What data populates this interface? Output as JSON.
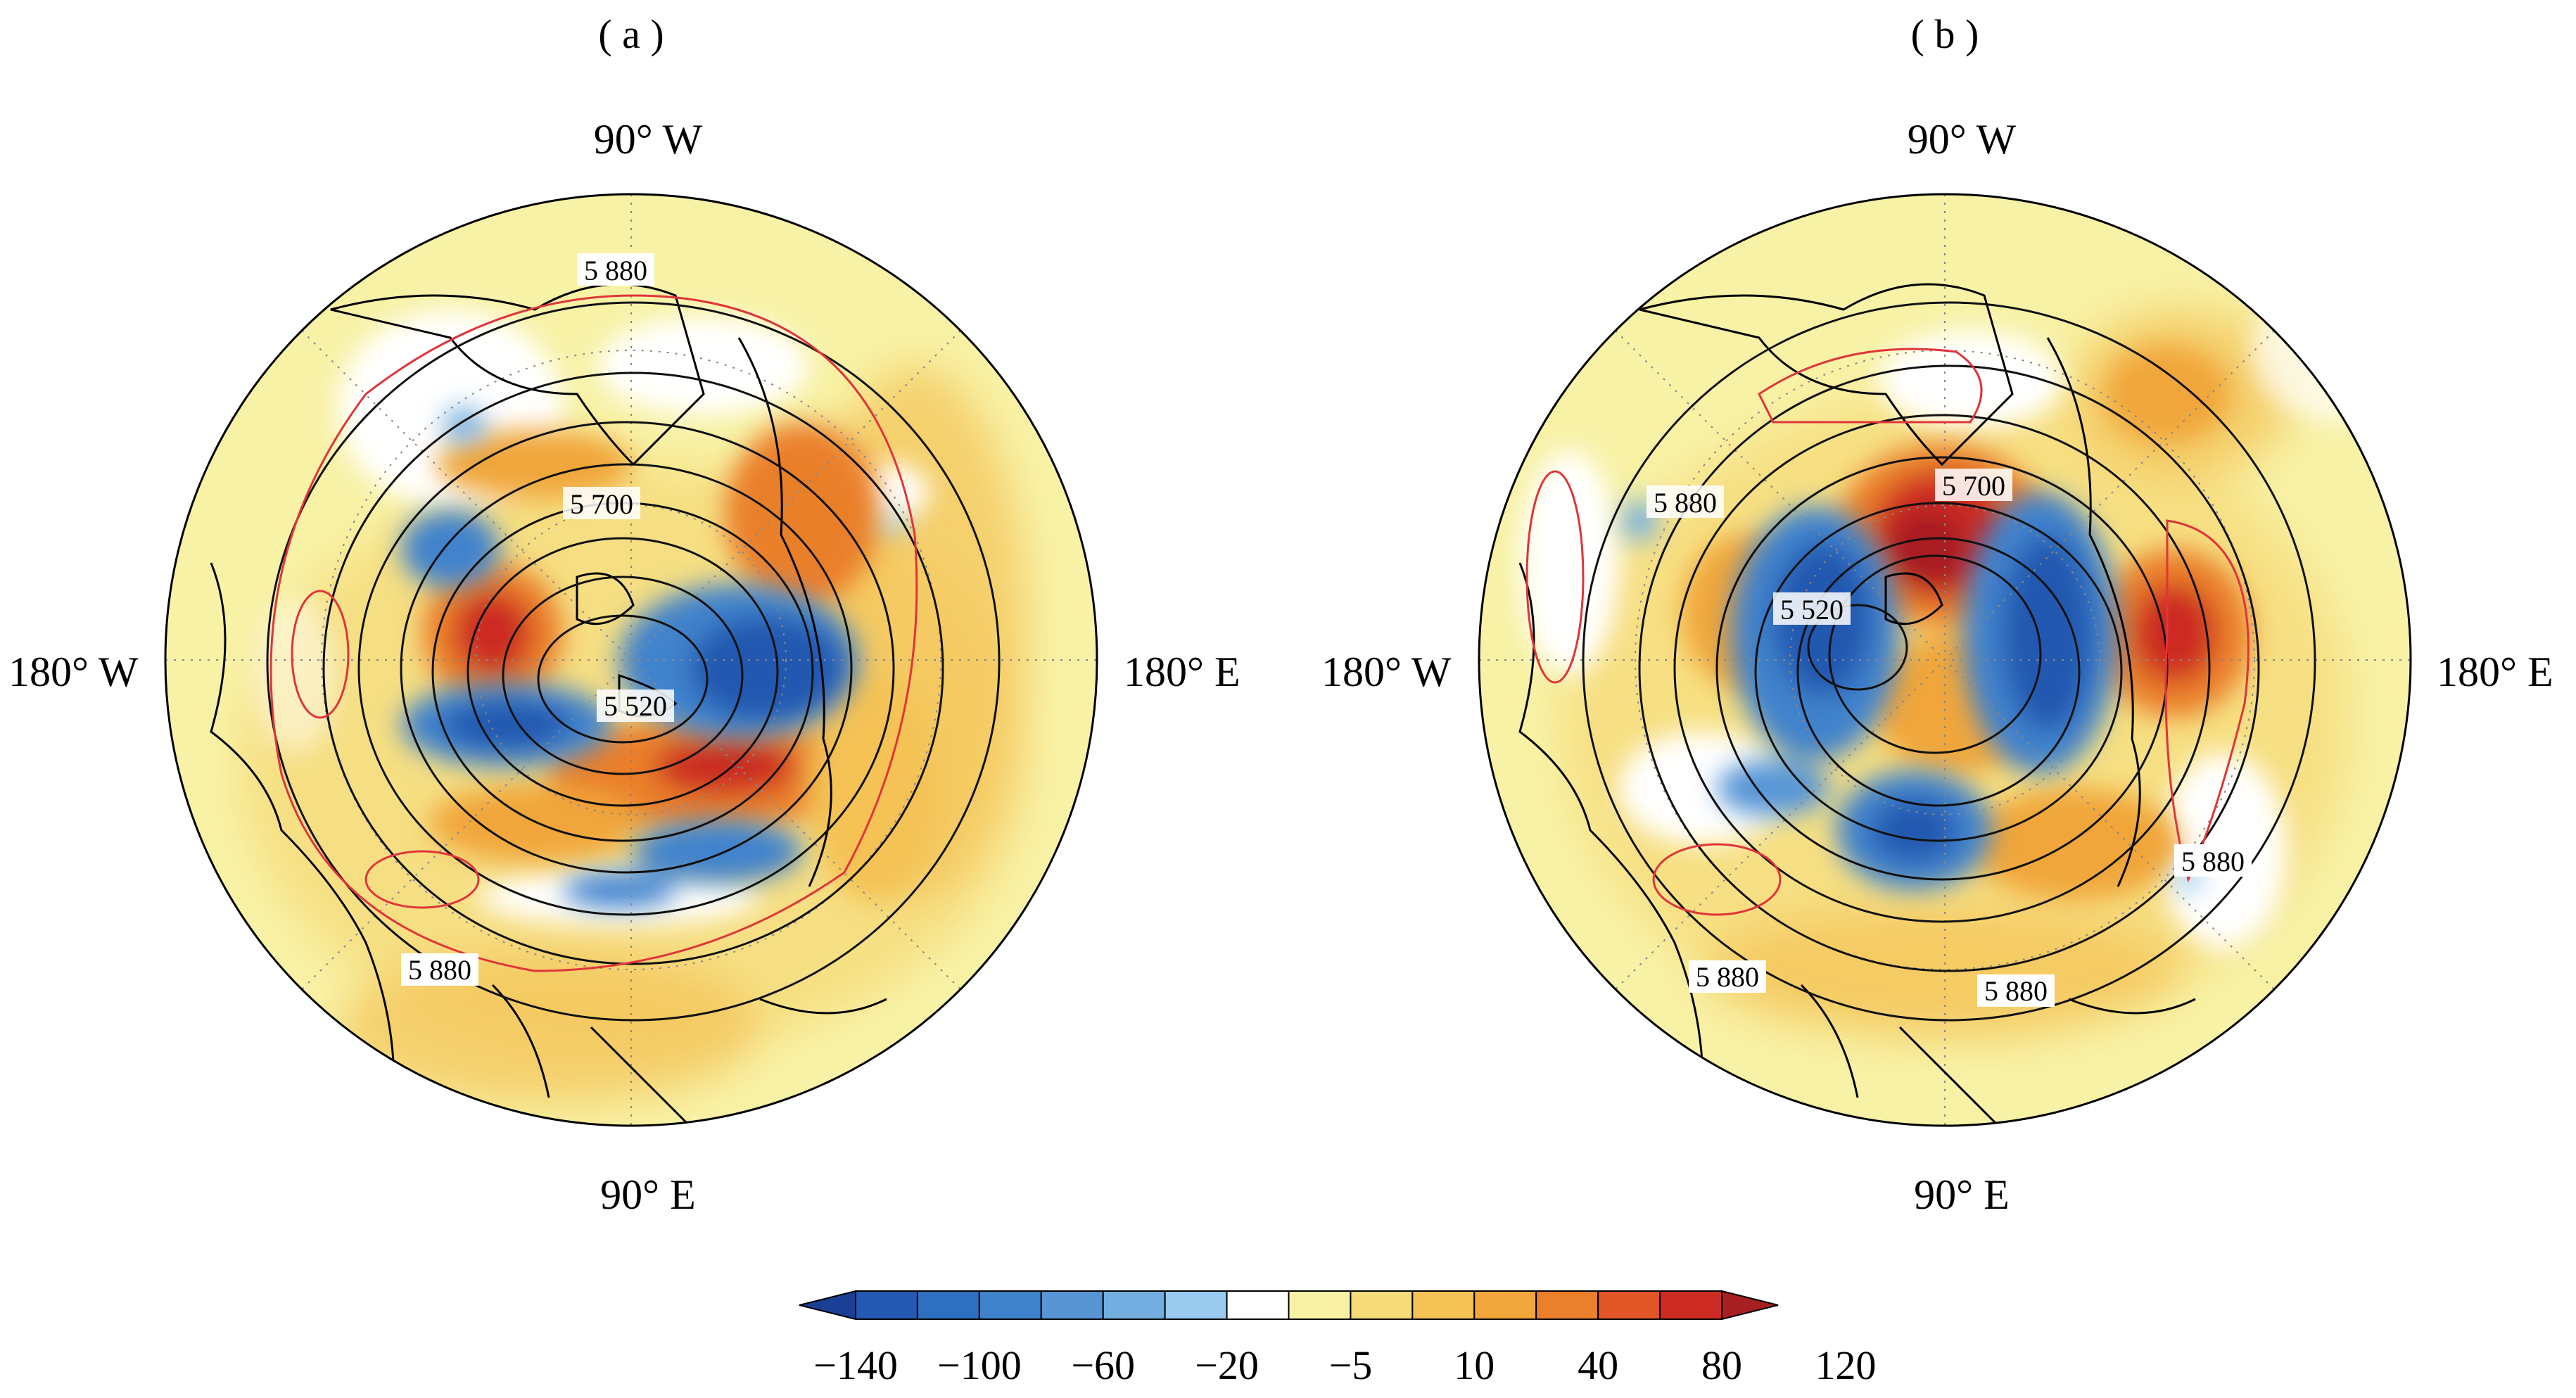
{
  "panels": [
    {
      "id": "a",
      "panel_label": "( a )",
      "lon_labels": {
        "top": "90° W",
        "left": "180° W",
        "right": "180° E",
        "bottom": "90° E"
      },
      "contour_labels": [
        "5 880",
        "5 700",
        "5 520",
        "5 880"
      ]
    },
    {
      "id": "b",
      "panel_label": "( b )",
      "lon_labels": {
        "top": "90° W",
        "left": "180° W",
        "right": "180° E",
        "bottom": "90° E"
      },
      "contour_labels": [
        "5 880",
        "5 700",
        "5 520",
        "5 880",
        "5 880",
        "5 880"
      ]
    }
  ],
  "colorbar": {
    "ticks": [
      "−140",
      "−100",
      "−60",
      "−20",
      "−5",
      "10",
      "40",
      "80",
      "120"
    ],
    "colors": [
      "#1a3f94",
      "#2359b0",
      "#2f6fc0",
      "#3f82cc",
      "#5795d5",
      "#74aee0",
      "#99cbee",
      "#ffffff",
      "#f8f2a6",
      "#f6db7a",
      "#f4c255",
      "#f0a63a",
      "#ea7f2c",
      "#e05626",
      "#cc2b24",
      "#a81f22"
    ]
  }
}
